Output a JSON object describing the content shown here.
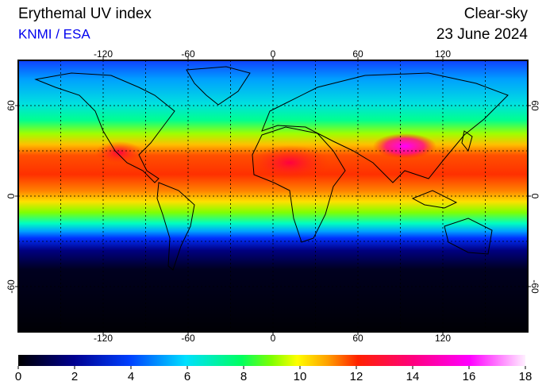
{
  "header": {
    "title": "Erythemal UV index",
    "source": "KNMI / ESA",
    "condition": "Clear-sky",
    "date": "23 June 2024"
  },
  "map": {
    "lonlim": [
      -180,
      180
    ],
    "latlim": [
      -90,
      90
    ],
    "lon_ticks": [
      -120,
      -60,
      0,
      60,
      120
    ],
    "lat_ticks": [
      60,
      0,
      -60
    ]
  },
  "colorbar": {
    "range": [
      0,
      18
    ],
    "ticks": [
      0,
      2,
      4,
      6,
      8,
      10,
      12,
      14,
      16,
      18
    ]
  }
}
